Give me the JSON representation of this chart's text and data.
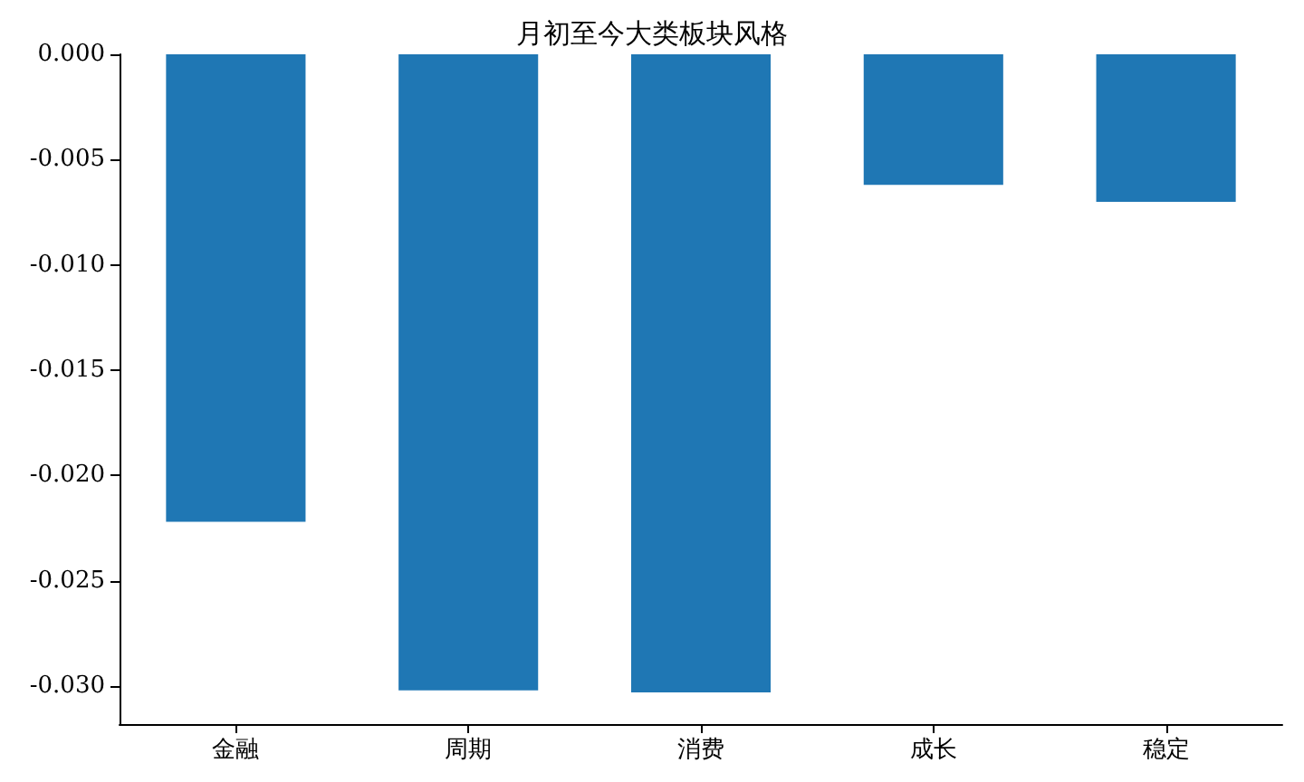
{
  "chart_data": {
    "type": "bar",
    "title": "月初至今大类板块风格",
    "categories": [
      "金融",
      "周期",
      "消费",
      "成长",
      "稳定"
    ],
    "values": [
      -0.0222,
      -0.0302,
      -0.0303,
      -0.0062,
      -0.007
    ],
    "color": "#1f77b4",
    "ylim": [
      -0.0318,
      0
    ],
    "yticks": [
      {
        "value": 0,
        "label": "0.000"
      },
      {
        "value": -0.005,
        "label": "-0.005"
      },
      {
        "value": -0.01,
        "label": "-0.010"
      },
      {
        "value": -0.015,
        "label": "-0.015"
      },
      {
        "value": -0.02,
        "label": "-0.020"
      },
      {
        "value": -0.025,
        "label": "-0.025"
      },
      {
        "value": -0.03,
        "label": "-0.030"
      }
    ],
    "grid": false
  }
}
